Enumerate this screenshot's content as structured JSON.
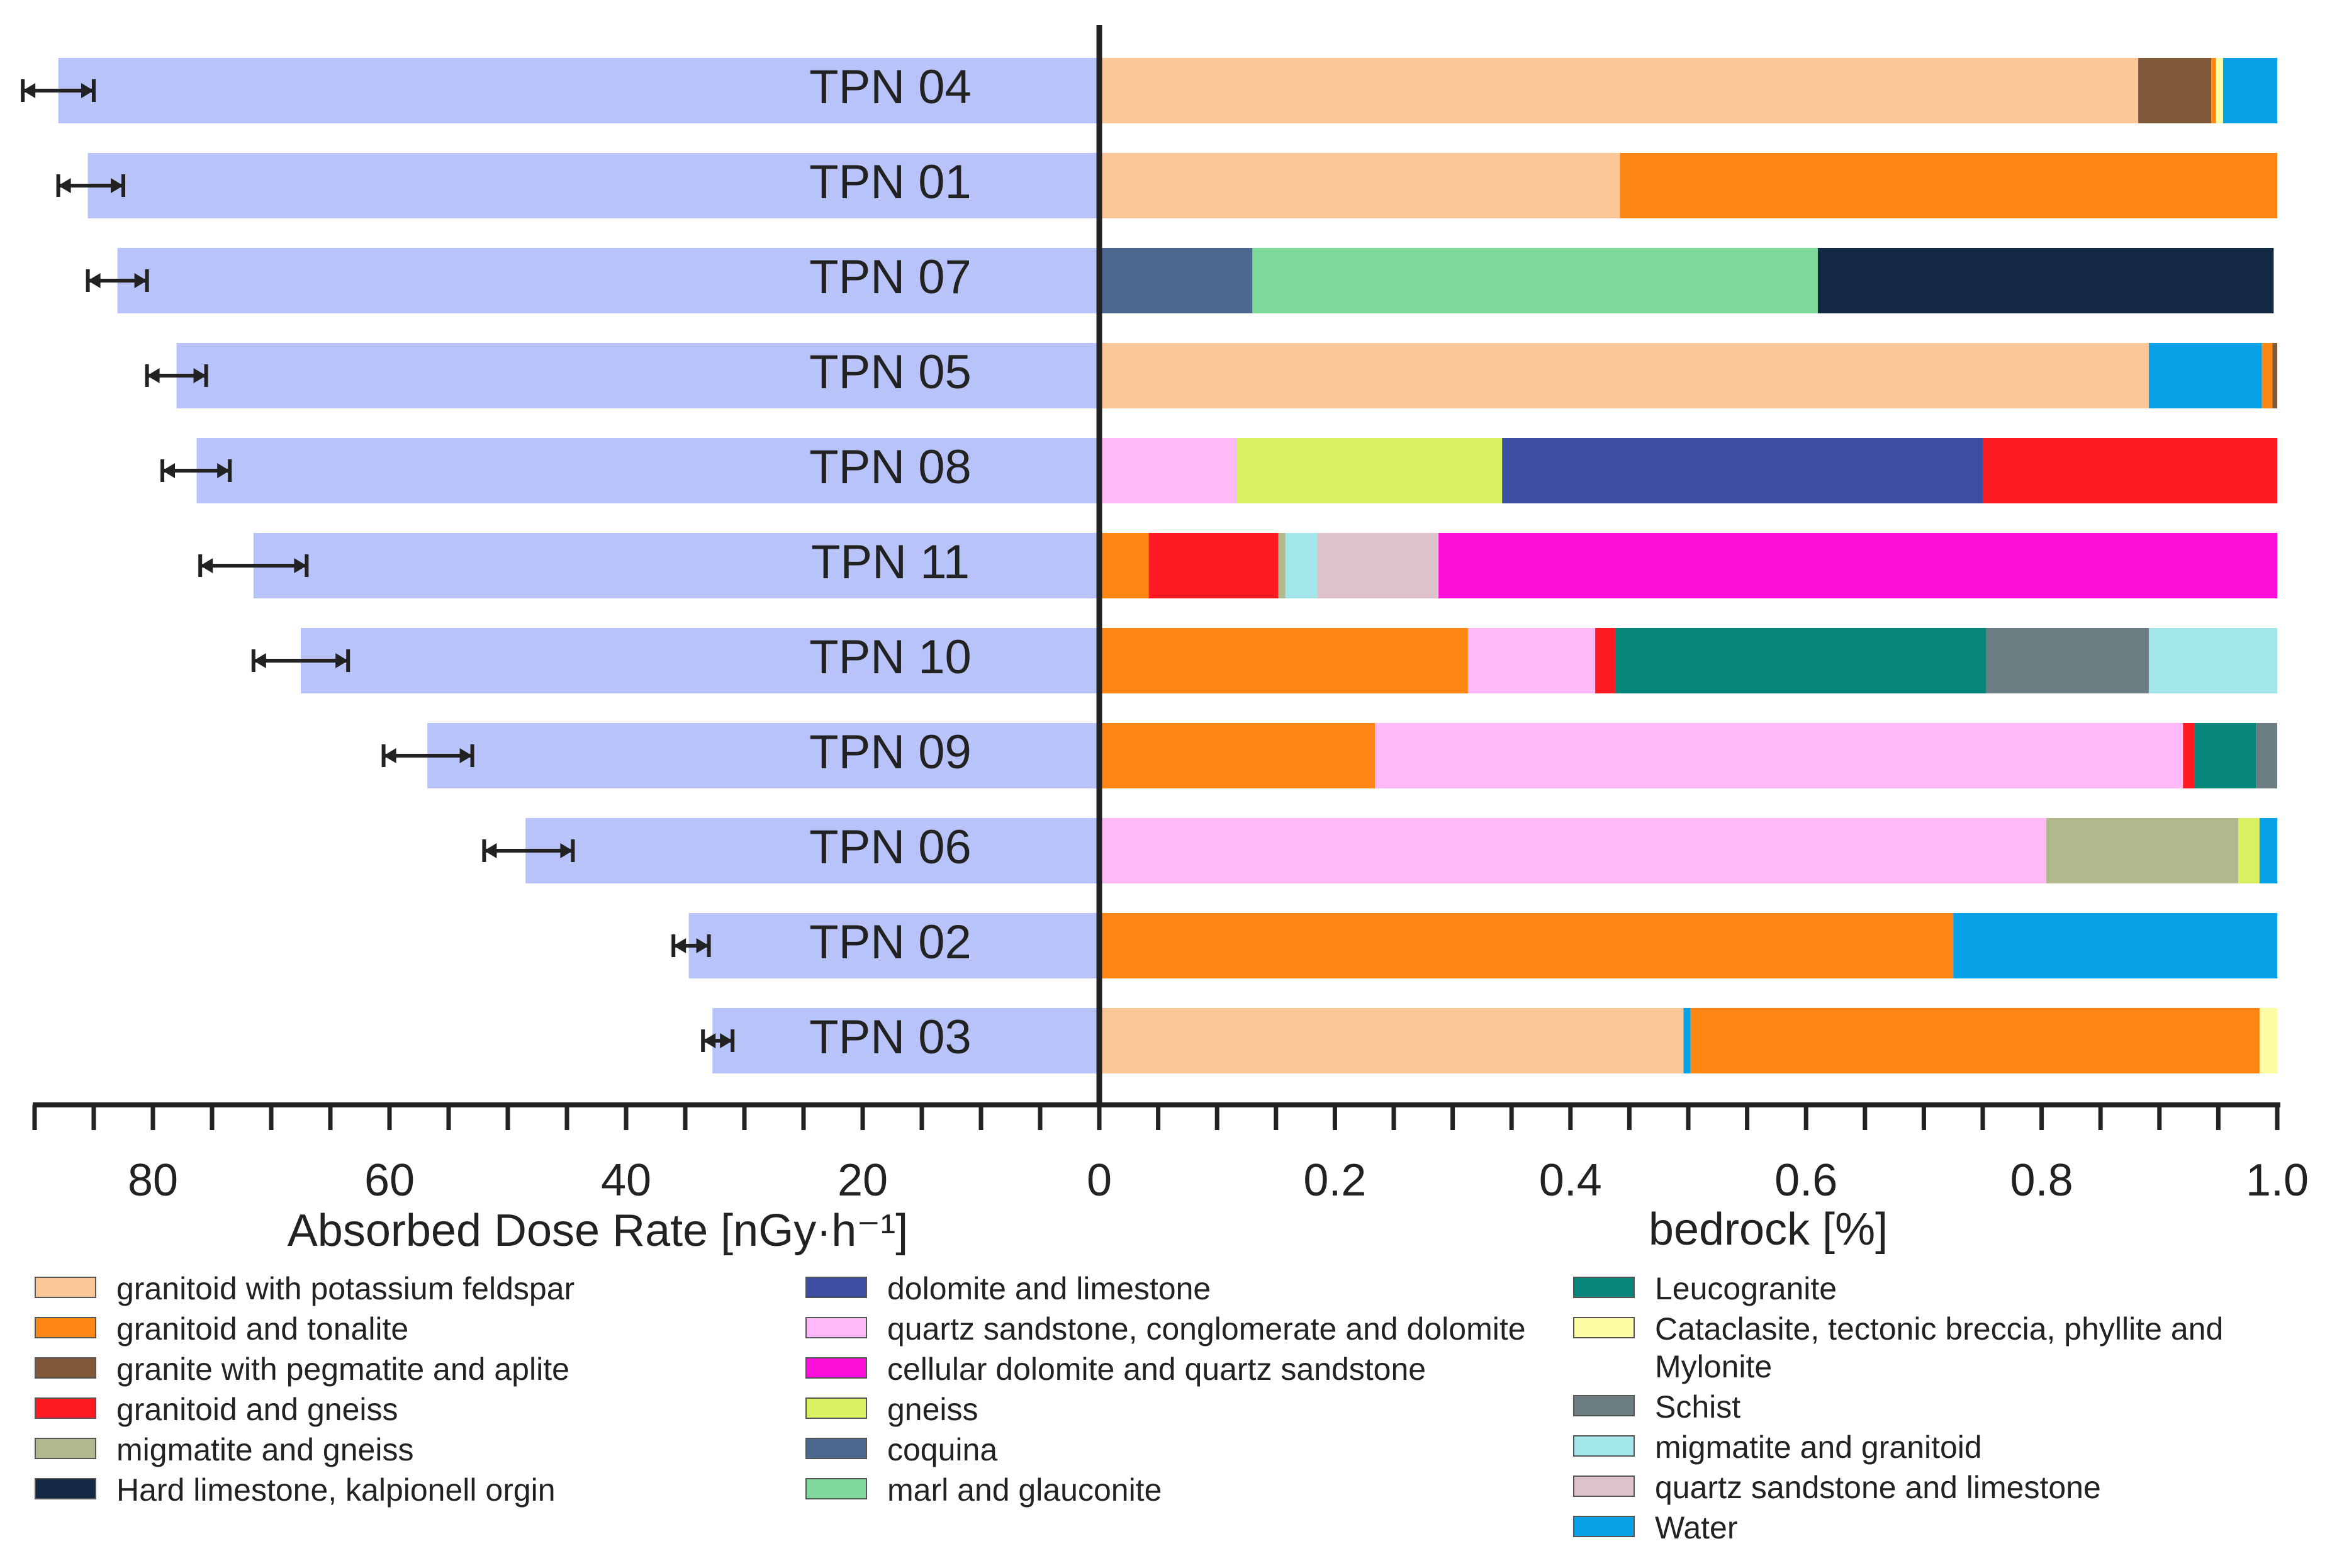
{
  "chart_data": {
    "type": "bar",
    "panels": [
      {
        "name": "dose-rate",
        "type": "bar",
        "orientation": "horizontal",
        "xlabel": "Absorbed Dose Rate [nGy·h⁻¹]",
        "xlim": [
          90,
          0
        ],
        "ticks": [
          "80",
          "60",
          "40",
          "20",
          "0"
        ],
        "tick_values": [
          80,
          60,
          40,
          20,
          0
        ],
        "bar_color": "#b8c3fa",
        "categories": [
          "TPN 04",
          "TPN 01",
          "TPN 07",
          "TPN 05",
          "TPN 08",
          "TPN 11",
          "TPN 10",
          "TPN 09",
          "TPN 06",
          "TPN 02",
          "TPN 03"
        ],
        "values": [
          88.0,
          85.5,
          83.0,
          78.0,
          76.3,
          71.5,
          67.5,
          56.8,
          48.5,
          34.7,
          32.7
        ],
        "error_low": [
          91.0,
          88.0,
          85.5,
          80.5,
          79.2,
          76.0,
          71.5,
          60.5,
          52.0,
          36.0,
          33.5
        ],
        "error_high": [
          85.0,
          82.5,
          80.5,
          75.5,
          73.5,
          67.0,
          63.5,
          53.0,
          44.5,
          33.0,
          31.0
        ]
      },
      {
        "name": "bedrock",
        "type": "stacked-bar",
        "orientation": "horizontal",
        "xlabel": "bedrock [%]",
        "xlim": [
          0,
          1.0
        ],
        "ticks": [
          "0",
          "0.2",
          "0.4",
          "0.6",
          "0.8",
          "1.0"
        ],
        "tick_values": [
          0,
          0.2,
          0.4,
          0.6,
          0.8,
          1.0
        ],
        "rows": [
          {
            "category": "TPN 04",
            "segments": [
              {
                "type": "granitoid with potassium feldspar",
                "value": 0.882
              },
              {
                "type": "granite with pegmatite and aplite",
                "value": 0.062
              },
              {
                "type": "granitoid and tonalite",
                "value": 0.004
              },
              {
                "type": "Cataclasite, tectonic breccia, phyllite and Mylonite",
                "value": 0.006
              },
              {
                "type": "Water",
                "value": 0.046
              }
            ]
          },
          {
            "category": "TPN 01",
            "segments": [
              {
                "type": "granitoid with potassium feldspar",
                "value": 0.442
              },
              {
                "type": "granitoid and tonalite",
                "value": 0.558
              }
            ]
          },
          {
            "category": "TPN 07",
            "segments": [
              {
                "type": "coquina",
                "value": 0.13
              },
              {
                "type": "marl and glauconite",
                "value": 0.48
              },
              {
                "type": "Hard limestone, kalpionell orgin",
                "value": 0.387
              }
            ]
          },
          {
            "category": "TPN 05",
            "segments": [
              {
                "type": "granitoid with potassium feldspar",
                "value": 0.891
              },
              {
                "type": "Water",
                "value": 0.096
              },
              {
                "type": "granitoid and tonalite",
                "value": 0.009
              },
              {
                "type": "granite with pegmatite and aplite",
                "value": 0.004
              }
            ]
          },
          {
            "category": "TPN 08",
            "segments": [
              {
                "type": "quartz sandstone, conglomerate and dolomite",
                "value": 0.117
              },
              {
                "type": "gneiss",
                "value": 0.225
              },
              {
                "type": "dolomite and limestone",
                "value": 0.408
              },
              {
                "type": "granitoid and gneiss",
                "value": 0.25
              }
            ]
          },
          {
            "category": "TPN 11",
            "segments": [
              {
                "type": "granitoid and tonalite",
                "value": 0.042
              },
              {
                "type": "granitoid and gneiss",
                "value": 0.11
              },
              {
                "type": "migmatite and  gneiss",
                "value": 0.006
              },
              {
                "type": "migmatite and granitoid",
                "value": 0.027
              },
              {
                "type": "quartz sandstone and limestone",
                "value": 0.103
              },
              {
                "type": "cellular dolomite and quartz sandstone",
                "value": 0.712
              }
            ]
          },
          {
            "category": "TPN 10",
            "segments": [
              {
                "type": "granitoid and tonalite",
                "value": 0.313
              },
              {
                "type": "quartz sandstone, conglomerate and dolomite",
                "value": 0.108
              },
              {
                "type": "granitoid and gneiss",
                "value": 0.017
              },
              {
                "type": "Leucogranite",
                "value": 0.315
              },
              {
                "type": "Schist",
                "value": 0.138
              },
              {
                "type": "migmatite and granitoid",
                "value": 0.109
              }
            ]
          },
          {
            "category": "TPN 09",
            "segments": [
              {
                "type": "granitoid and tonalite",
                "value": 0.234
              },
              {
                "type": "quartz sandstone, conglomerate and dolomite",
                "value": 0.686
              },
              {
                "type": "granitoid and gneiss",
                "value": 0.01
              },
              {
                "type": "Leucogranite",
                "value": 0.052
              },
              {
                "type": "Schist",
                "value": 0.018
              }
            ]
          },
          {
            "category": "TPN 06",
            "segments": [
              {
                "type": "quartz sandstone, conglomerate and dolomite",
                "value": 0.804
              },
              {
                "type": "migmatite and  gneiss",
                "value": 0.163
              },
              {
                "type": "gneiss",
                "value": 0.018
              },
              {
                "type": "Water",
                "value": 0.015
              }
            ]
          },
          {
            "category": "TPN 02",
            "segments": [
              {
                "type": "granitoid and tonalite",
                "value": 0.725
              },
              {
                "type": "Water",
                "value": 0.275
              }
            ]
          },
          {
            "category": "TPN 03",
            "segments": [
              {
                "type": "granitoid with potassium feldspar",
                "value": 0.496
              },
              {
                "type": "Water",
                "value": 0.006
              },
              {
                "type": "granitoid and tonalite",
                "value": 0.483
              },
              {
                "type": "Cataclasite, tectonic breccia, phyllite and Mylonite",
                "value": 0.015
              }
            ]
          }
        ]
      }
    ],
    "legend": [
      {
        "label": "granitoid with potassium feldspar",
        "color": "#fcc798"
      },
      {
        "label": "granitoid and tonalite",
        "color": "#fd8614"
      },
      {
        "label": "granite with pegmatite and aplite",
        "color": "#80593a"
      },
      {
        "label": "granitoid and gneiss",
        "color": "#fc1a23"
      },
      {
        "label": "migmatite and  gneiss",
        "color": "#b0b88c"
      },
      {
        "label": "Hard limestone, kalpionell orgin",
        "color": "#132842"
      },
      {
        "label": "dolomite and limestone",
        "color": "#3c4ea0"
      },
      {
        "label": "quartz sandstone, conglomerate and dolomite",
        "color": "#fdb9f8"
      },
      {
        "label": "cellular dolomite and quartz sandstone",
        "color": "#fd0fda"
      },
      {
        "label": "gneiss",
        "color": "#daf063"
      },
      {
        "label": "coquina",
        "color": "#4b668f"
      },
      {
        "label": "marl and glauconite",
        "color": "#7fd99a"
      },
      {
        "label": "Leucogranite",
        "color": "#06867a"
      },
      {
        "label": "Cataclasite, tectonic breccia, phyllite and Mylonite",
        "color": "#fdfca4"
      },
      {
        "label": "Schist",
        "color": "#6c7e84"
      },
      {
        "label": "migmatite and granitoid",
        "color": "#a3e6ea"
      },
      {
        "label": "quartz sandstone and limestone",
        "color": "#ddc2cb"
      },
      {
        "label": "Water",
        "color": "#07a1e7"
      }
    ],
    "legend_columns": 3,
    "legend_placement": "bottom"
  }
}
